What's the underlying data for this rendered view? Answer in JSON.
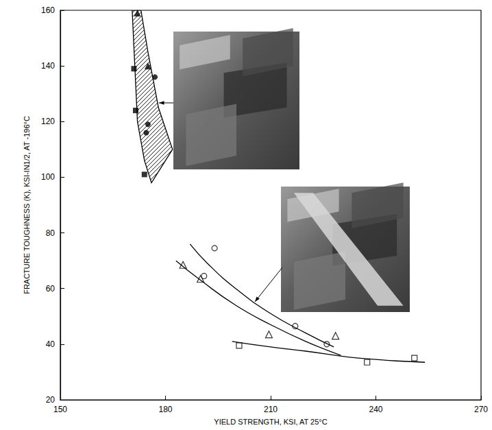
{
  "chart_data": {
    "type": "scatter",
    "x_label": "YIELD STRENGTH, KSI, AT 25°C",
    "y_label": "FRACTURE TOUGHNESS (K), KSI-IN1/2, AT -196°C",
    "xlim": [
      150,
      270
    ],
    "xticks": [
      150,
      180,
      210,
      240,
      270
    ],
    "ylim": [
      20,
      160
    ],
    "yticks": [
      20,
      40,
      60,
      80,
      100,
      120,
      140,
      160
    ],
    "grid": false,
    "series": [
      {
        "type": "polygon",
        "line_style": "hatched",
        "color": "#000000",
        "x": [
          170.5,
          172,
          174,
          176,
          182,
          178,
          175,
          173
        ],
        "values": [
          160,
          120,
          106,
          98,
          110,
          125,
          145,
          160
        ]
      },
      {
        "type": "scatter",
        "marker": "filled triangle",
        "color": "#000000",
        "x": [
          172,
          175
        ],
        "values": [
          159,
          140
        ]
      },
      {
        "type": "scatter",
        "marker": "filled square",
        "color": "#000000",
        "x": [
          171,
          171.5,
          174
        ],
        "values": [
          139,
          124,
          101
        ]
      },
      {
        "type": "scatter",
        "marker": "filled circle",
        "color": "#000000",
        "x": [
          177,
          175,
          174.5
        ],
        "values": [
          136,
          119,
          116
        ]
      },
      {
        "type": "line",
        "line_style": "solid",
        "color": "#000000",
        "x": [
          187,
          192,
          200,
          210,
          220,
          228
        ],
        "values": [
          76,
          69,
          60,
          51,
          44,
          39
        ]
      },
      {
        "type": "line",
        "line_style": "solid",
        "color": "#000000",
        "x": [
          183,
          190,
          200,
          210,
          220,
          230
        ],
        "values": [
          70,
          63,
          54,
          47,
          41,
          36
        ]
      },
      {
        "type": "line",
        "line_style": "solid",
        "color": "#000000",
        "x": [
          199,
          210,
          220,
          235,
          254
        ],
        "values": [
          41,
          39,
          37.5,
          35,
          33.5
        ]
      },
      {
        "type": "scatter",
        "marker": "open circle",
        "color": "#000000",
        "x": [
          194,
          191,
          217,
          226
        ],
        "values": [
          74.5,
          64.5,
          46.5,
          40
        ]
      },
      {
        "type": "scatter",
        "marker": "open triangle",
        "color": "#000000",
        "x": [
          185,
          190,
          209.5,
          228.5
        ],
        "values": [
          68.5,
          63.5,
          43.5,
          43
        ]
      },
      {
        "type": "scatter",
        "marker": "open square",
        "color": "#000000",
        "x": [
          201,
          237.5,
          251
        ],
        "values": [
          39.5,
          33.5,
          35
        ]
      }
    ]
  }
}
